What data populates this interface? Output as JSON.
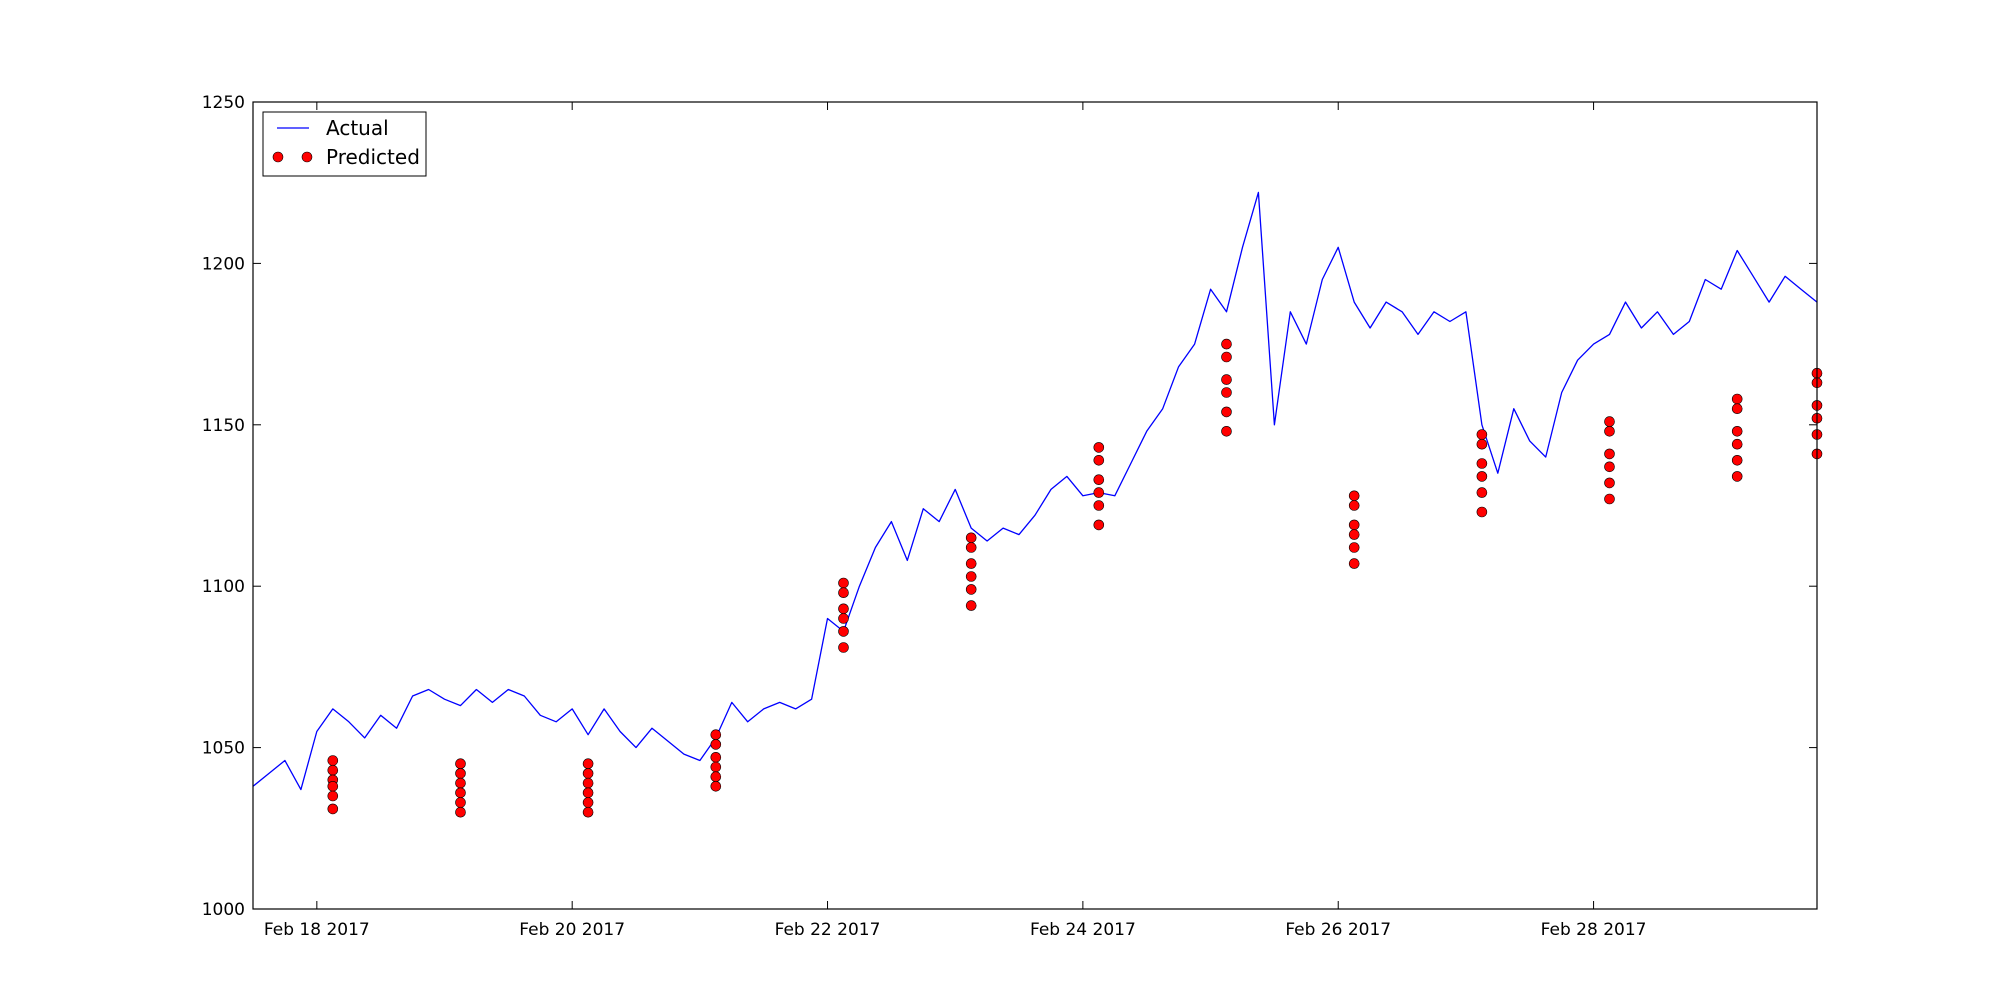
{
  "chart_data": {
    "type": "line",
    "title": "",
    "xlabel": "",
    "ylabel": "",
    "ylim": [
      1000,
      1250
    ],
    "xlim": [
      "2017-02-17 12:00",
      "2017-03-01 18:00"
    ],
    "grid": false,
    "legend_position": "top-left",
    "y_ticks": [
      1000,
      1050,
      1100,
      1150,
      1200,
      1250
    ],
    "x_ticks": [
      {
        "date": "2017-02-18",
        "label": "Feb 18 2017"
      },
      {
        "date": "2017-02-20",
        "label": "Feb 20 2017"
      },
      {
        "date": "2017-02-22",
        "label": "Feb 22 2017"
      },
      {
        "date": "2017-02-24",
        "label": "Feb 24 2017"
      },
      {
        "date": "2017-02-26",
        "label": "Feb 26 2017"
      },
      {
        "date": "2017-02-28",
        "label": "Feb 28 2017"
      }
    ],
    "series": [
      {
        "name": "Actual",
        "style": "line",
        "color": "#0000ff",
        "points": [
          [
            "2017-02-17 12:00",
            1038
          ],
          [
            "2017-02-17 15:00",
            1042
          ],
          [
            "2017-02-17 18:00",
            1046
          ],
          [
            "2017-02-17 21:00",
            1037
          ],
          [
            "2017-02-18 00:00",
            1055
          ],
          [
            "2017-02-18 03:00",
            1062
          ],
          [
            "2017-02-18 06:00",
            1058
          ],
          [
            "2017-02-18 09:00",
            1053
          ],
          [
            "2017-02-18 12:00",
            1060
          ],
          [
            "2017-02-18 15:00",
            1056
          ],
          [
            "2017-02-18 18:00",
            1066
          ],
          [
            "2017-02-18 21:00",
            1068
          ],
          [
            "2017-02-19 00:00",
            1065
          ],
          [
            "2017-02-19 03:00",
            1063
          ],
          [
            "2017-02-19 06:00",
            1068
          ],
          [
            "2017-02-19 09:00",
            1064
          ],
          [
            "2017-02-19 12:00",
            1068
          ],
          [
            "2017-02-19 15:00",
            1066
          ],
          [
            "2017-02-19 18:00",
            1060
          ],
          [
            "2017-02-19 21:00",
            1058
          ],
          [
            "2017-02-20 00:00",
            1062
          ],
          [
            "2017-02-20 03:00",
            1054
          ],
          [
            "2017-02-20 06:00",
            1062
          ],
          [
            "2017-02-20 09:00",
            1055
          ],
          [
            "2017-02-20 12:00",
            1050
          ],
          [
            "2017-02-20 15:00",
            1056
          ],
          [
            "2017-02-20 18:00",
            1052
          ],
          [
            "2017-02-20 21:00",
            1048
          ],
          [
            "2017-02-21 00:00",
            1046
          ],
          [
            "2017-02-21 03:00",
            1053
          ],
          [
            "2017-02-21 06:00",
            1064
          ],
          [
            "2017-02-21 09:00",
            1058
          ],
          [
            "2017-02-21 12:00",
            1062
          ],
          [
            "2017-02-21 15:00",
            1064
          ],
          [
            "2017-02-21 18:00",
            1062
          ],
          [
            "2017-02-21 21:00",
            1065
          ],
          [
            "2017-02-22 00:00",
            1090
          ],
          [
            "2017-02-22 03:00",
            1086
          ],
          [
            "2017-02-22 06:00",
            1100
          ],
          [
            "2017-02-22 09:00",
            1112
          ],
          [
            "2017-02-22 12:00",
            1120
          ],
          [
            "2017-02-22 15:00",
            1108
          ],
          [
            "2017-02-22 18:00",
            1124
          ],
          [
            "2017-02-22 21:00",
            1120
          ],
          [
            "2017-02-23 00:00",
            1130
          ],
          [
            "2017-02-23 03:00",
            1118
          ],
          [
            "2017-02-23 06:00",
            1114
          ],
          [
            "2017-02-23 09:00",
            1118
          ],
          [
            "2017-02-23 12:00",
            1116
          ],
          [
            "2017-02-23 15:00",
            1122
          ],
          [
            "2017-02-23 18:00",
            1130
          ],
          [
            "2017-02-23 21:00",
            1134
          ],
          [
            "2017-02-24 00:00",
            1128
          ],
          [
            "2017-02-24 03:00",
            1129
          ],
          [
            "2017-02-24 06:00",
            1128
          ],
          [
            "2017-02-24 09:00",
            1138
          ],
          [
            "2017-02-24 12:00",
            1148
          ],
          [
            "2017-02-24 15:00",
            1155
          ],
          [
            "2017-02-24 18:00",
            1168
          ],
          [
            "2017-02-24 21:00",
            1175
          ],
          [
            "2017-02-25 00:00",
            1192
          ],
          [
            "2017-02-25 03:00",
            1185
          ],
          [
            "2017-02-25 06:00",
            1205
          ],
          [
            "2017-02-25 09:00",
            1222
          ],
          [
            "2017-02-25 12:00",
            1150
          ],
          [
            "2017-02-25 15:00",
            1185
          ],
          [
            "2017-02-25 18:00",
            1175
          ],
          [
            "2017-02-25 21:00",
            1195
          ],
          [
            "2017-02-26 00:00",
            1205
          ],
          [
            "2017-02-26 03:00",
            1188
          ],
          [
            "2017-02-26 06:00",
            1180
          ],
          [
            "2017-02-26 09:00",
            1188
          ],
          [
            "2017-02-26 12:00",
            1185
          ],
          [
            "2017-02-26 15:00",
            1178
          ],
          [
            "2017-02-26 18:00",
            1185
          ],
          [
            "2017-02-26 21:00",
            1182
          ],
          [
            "2017-02-27 00:00",
            1185
          ],
          [
            "2017-02-27 03:00",
            1150
          ],
          [
            "2017-02-27 06:00",
            1135
          ],
          [
            "2017-02-27 09:00",
            1155
          ],
          [
            "2017-02-27 12:00",
            1145
          ],
          [
            "2017-02-27 15:00",
            1140
          ],
          [
            "2017-02-27 18:00",
            1160
          ],
          [
            "2017-02-27 21:00",
            1170
          ],
          [
            "2017-02-28 00:00",
            1175
          ],
          [
            "2017-02-28 03:00",
            1178
          ],
          [
            "2017-02-28 06:00",
            1188
          ],
          [
            "2017-02-28 09:00",
            1180
          ],
          [
            "2017-02-28 12:00",
            1185
          ],
          [
            "2017-02-28 15:00",
            1178
          ],
          [
            "2017-02-28 18:00",
            1182
          ],
          [
            "2017-02-28 21:00",
            1195
          ],
          [
            "2017-03-01 00:00",
            1192
          ],
          [
            "2017-03-01 03:00",
            1204
          ],
          [
            "2017-03-01 06:00",
            1196
          ],
          [
            "2017-03-01 09:00",
            1188
          ],
          [
            "2017-03-01 12:00",
            1196
          ],
          [
            "2017-03-01 15:00",
            1192
          ],
          [
            "2017-03-01 18:00",
            1188
          ]
        ]
      },
      {
        "name": "Predicted",
        "style": "markers",
        "color": "#ff0000",
        "points": [
          [
            "2017-02-18 03:00",
            1046
          ],
          [
            "2017-02-18 03:00",
            1043
          ],
          [
            "2017-02-18 03:00",
            1040
          ],
          [
            "2017-02-18 03:00",
            1038
          ],
          [
            "2017-02-18 03:00",
            1035
          ],
          [
            "2017-02-18 03:00",
            1031
          ],
          [
            "2017-02-19 03:00",
            1045
          ],
          [
            "2017-02-19 03:00",
            1042
          ],
          [
            "2017-02-19 03:00",
            1039
          ],
          [
            "2017-02-19 03:00",
            1036
          ],
          [
            "2017-02-19 03:00",
            1033
          ],
          [
            "2017-02-19 03:00",
            1030
          ],
          [
            "2017-02-20 03:00",
            1045
          ],
          [
            "2017-02-20 03:00",
            1042
          ],
          [
            "2017-02-20 03:00",
            1039
          ],
          [
            "2017-02-20 03:00",
            1036
          ],
          [
            "2017-02-20 03:00",
            1033
          ],
          [
            "2017-02-20 03:00",
            1030
          ],
          [
            "2017-02-21 03:00",
            1054
          ],
          [
            "2017-02-21 03:00",
            1051
          ],
          [
            "2017-02-21 03:00",
            1047
          ],
          [
            "2017-02-21 03:00",
            1044
          ],
          [
            "2017-02-21 03:00",
            1041
          ],
          [
            "2017-02-21 03:00",
            1038
          ],
          [
            "2017-02-22 03:00",
            1101
          ],
          [
            "2017-02-22 03:00",
            1098
          ],
          [
            "2017-02-22 03:00",
            1093
          ],
          [
            "2017-02-22 03:00",
            1090
          ],
          [
            "2017-02-22 03:00",
            1086
          ],
          [
            "2017-02-22 03:00",
            1081
          ],
          [
            "2017-02-23 03:00",
            1115
          ],
          [
            "2017-02-23 03:00",
            1112
          ],
          [
            "2017-02-23 03:00",
            1107
          ],
          [
            "2017-02-23 03:00",
            1103
          ],
          [
            "2017-02-23 03:00",
            1099
          ],
          [
            "2017-02-23 03:00",
            1094
          ],
          [
            "2017-02-24 03:00",
            1143
          ],
          [
            "2017-02-24 03:00",
            1139
          ],
          [
            "2017-02-24 03:00",
            1133
          ],
          [
            "2017-02-24 03:00",
            1129
          ],
          [
            "2017-02-24 03:00",
            1125
          ],
          [
            "2017-02-24 03:00",
            1119
          ],
          [
            "2017-02-25 03:00",
            1175
          ],
          [
            "2017-02-25 03:00",
            1171
          ],
          [
            "2017-02-25 03:00",
            1164
          ],
          [
            "2017-02-25 03:00",
            1160
          ],
          [
            "2017-02-25 03:00",
            1154
          ],
          [
            "2017-02-25 03:00",
            1148
          ],
          [
            "2017-02-26 03:00",
            1128
          ],
          [
            "2017-02-26 03:00",
            1125
          ],
          [
            "2017-02-26 03:00",
            1119
          ],
          [
            "2017-02-26 03:00",
            1116
          ],
          [
            "2017-02-26 03:00",
            1112
          ],
          [
            "2017-02-26 03:00",
            1107
          ],
          [
            "2017-02-27 03:00",
            1147
          ],
          [
            "2017-02-27 03:00",
            1144
          ],
          [
            "2017-02-27 03:00",
            1138
          ],
          [
            "2017-02-27 03:00",
            1134
          ],
          [
            "2017-02-27 03:00",
            1129
          ],
          [
            "2017-02-27 03:00",
            1123
          ],
          [
            "2017-02-28 03:00",
            1151
          ],
          [
            "2017-02-28 03:00",
            1148
          ],
          [
            "2017-02-28 03:00",
            1141
          ],
          [
            "2017-02-28 03:00",
            1137
          ],
          [
            "2017-02-28 03:00",
            1132
          ],
          [
            "2017-02-28 03:00",
            1127
          ],
          [
            "2017-03-01 03:00",
            1158
          ],
          [
            "2017-03-01 03:00",
            1155
          ],
          [
            "2017-03-01 03:00",
            1148
          ],
          [
            "2017-03-01 03:00",
            1144
          ],
          [
            "2017-03-01 03:00",
            1139
          ],
          [
            "2017-03-01 03:00",
            1134
          ],
          [
            "2017-03-01 18:00",
            1166
          ],
          [
            "2017-03-01 18:00",
            1163
          ],
          [
            "2017-03-01 18:00",
            1156
          ],
          [
            "2017-03-01 18:00",
            1152
          ],
          [
            "2017-03-01 18:00",
            1147
          ],
          [
            "2017-03-01 18:00",
            1141
          ]
        ]
      }
    ]
  }
}
